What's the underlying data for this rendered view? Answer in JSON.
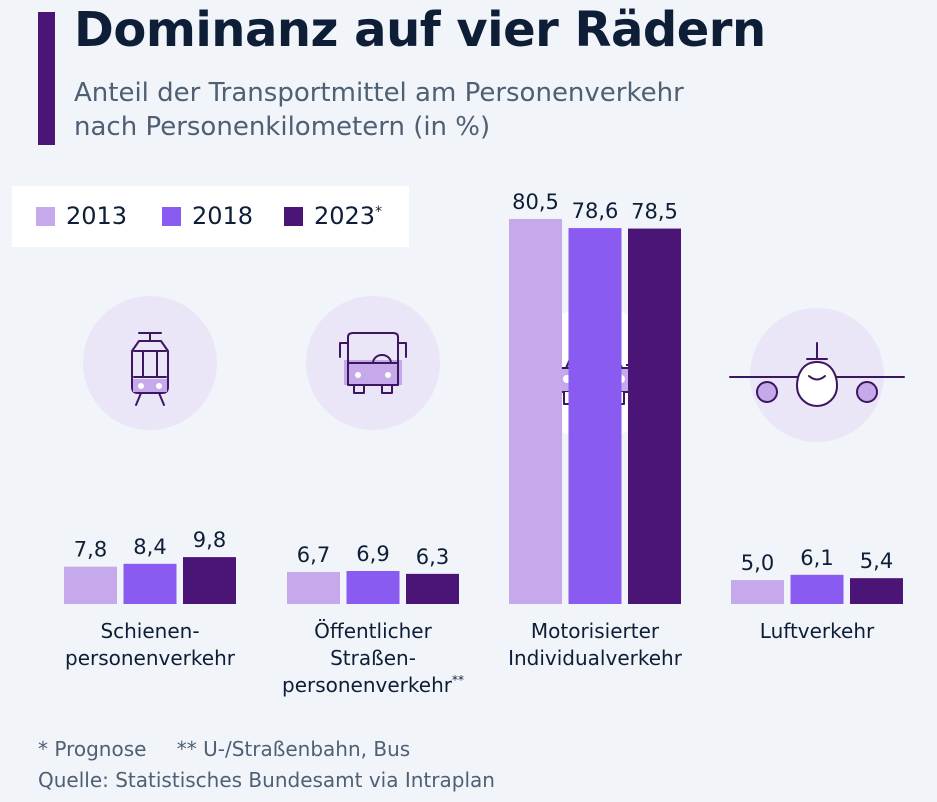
{
  "header": {
    "title": "Dominanz auf vier Rädern",
    "subtitle_line1": "Anteil der Transportmittel am Personenverkehr",
    "subtitle_line2": "nach Personenkilometern (in %)"
  },
  "colors": {
    "2013": "#c6a9ea",
    "2018": "#8a5bf0",
    "2023": "#4b1477",
    "icon_circle": "#ebe5f8",
    "icon_stroke": "#3c1760",
    "icon_fill": "#c6a9ea"
  },
  "legend": {
    "items": [
      {
        "label": "2013",
        "color_key": "2013",
        "mark": ""
      },
      {
        "label": "2018",
        "color_key": "2018",
        "mark": ""
      },
      {
        "label": "2023",
        "color_key": "2023",
        "mark": "*"
      }
    ]
  },
  "chart_data": {
    "type": "bar",
    "title": "Dominanz auf vier Rädern",
    "subtitle": "Anteil der Transportmittel am Personenverkehr nach Personenkilometern (in %)",
    "unit": "%",
    "decimal_separator": ",",
    "ylim": [
      0,
      80.5
    ],
    "grid": false,
    "legend_position": "top-left",
    "categories": [
      {
        "lines": [
          "Schienen-",
          "personenverkehr"
        ],
        "mark": "",
        "icon": "tram-icon"
      },
      {
        "lines": [
          "Öffentlicher",
          "Straßen-",
          "personenverkehr"
        ],
        "mark": "**",
        "icon": "bus-icon"
      },
      {
        "lines": [
          "Motorisierter",
          "Individualverkehr"
        ],
        "mark": "",
        "icon": "car-icon"
      },
      {
        "lines": [
          "Luftverkehr"
        ],
        "mark": "",
        "icon": "airplane-icon"
      }
    ],
    "series": [
      {
        "name": "2013",
        "values": [
          7.8,
          6.7,
          80.5,
          5.0
        ]
      },
      {
        "name": "2018",
        "values": [
          8.4,
          6.9,
          78.6,
          6.1
        ]
      },
      {
        "name": "2023",
        "values": [
          9.8,
          6.3,
          78.5,
          5.4
        ]
      }
    ]
  },
  "footer": {
    "note_forecast": "* Prognose",
    "note_bus": "** U-/Straßenbahn, Bus",
    "source": "Quelle: Statistisches Bundesamt via Intraplan"
  }
}
